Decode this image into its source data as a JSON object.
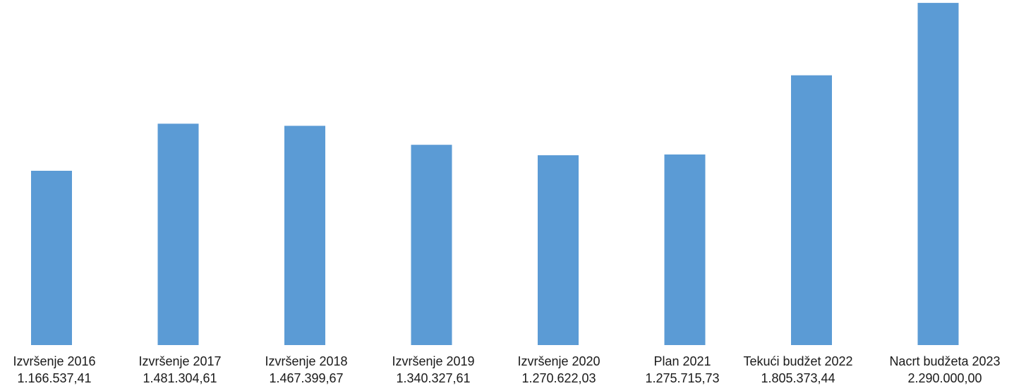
{
  "chart_data": {
    "type": "bar",
    "categories": [
      [
        "Izvršenje 2016",
        "1.166.537,41"
      ],
      [
        "Izvršenje 2017",
        "1.481.304,61"
      ],
      [
        "Izvršenje 2018",
        "1.467.399,67"
      ],
      [
        "Izvršenje 2019",
        "1.340.327,61"
      ],
      [
        "Izvršenje 2020",
        "1.270.622,03"
      ],
      [
        "Plan 2021",
        "1.275.715,73"
      ],
      [
        "Tekući budžet 2022",
        "1.805.373,44"
      ],
      [
        "Nacrt budžeta 2023",
        "2.290.000,00"
      ]
    ],
    "values": [
      1166537.41,
      1481304.61,
      1467399.67,
      1340327.61,
      1270622.03,
      1275715.73,
      1805373.44,
      2290000.0
    ],
    "title": "",
    "xlabel": "",
    "ylabel": "",
    "ylim": [
      0,
      2300000
    ],
    "grid": false,
    "legend": "none",
    "bar_color": "#5b9bd5"
  }
}
